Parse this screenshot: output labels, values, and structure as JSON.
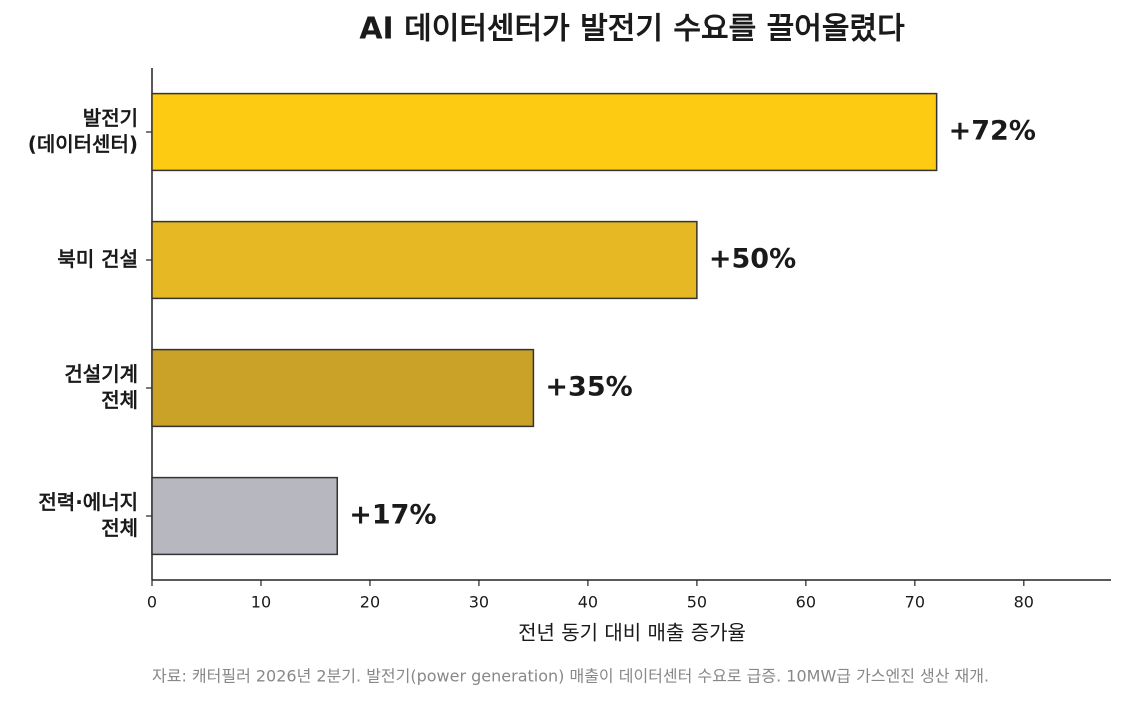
{
  "chart_data": {
    "type": "barh",
    "title": "AI 데이터센터가 발전기 수요를 끌어올렸다",
    "categories": [
      "발전기\n(데이터센터)",
      "북미 건설",
      "건설기계\n전체",
      "전력·에너지\n전체"
    ],
    "values": [
      72,
      50,
      35,
      17
    ],
    "value_labels": [
      "+72%",
      "+50%",
      "+35%",
      "+17%"
    ],
    "colors": [
      "#fdcb12",
      "#e5b824",
      "#c9a227",
      "#b7b7bf"
    ],
    "xlim": [
      0,
      88
    ],
    "xticks": [
      0,
      10,
      20,
      30,
      40,
      50,
      60,
      70,
      80
    ],
    "xlabel": "전년 동기 대비 매출 증가율",
    "note": "자료: 캐터필러 2026년 2분기. 발전기(power generation) 매출이 데이터센터 수요로 급증. 10MW급 가스엔진 생산 재개."
  }
}
